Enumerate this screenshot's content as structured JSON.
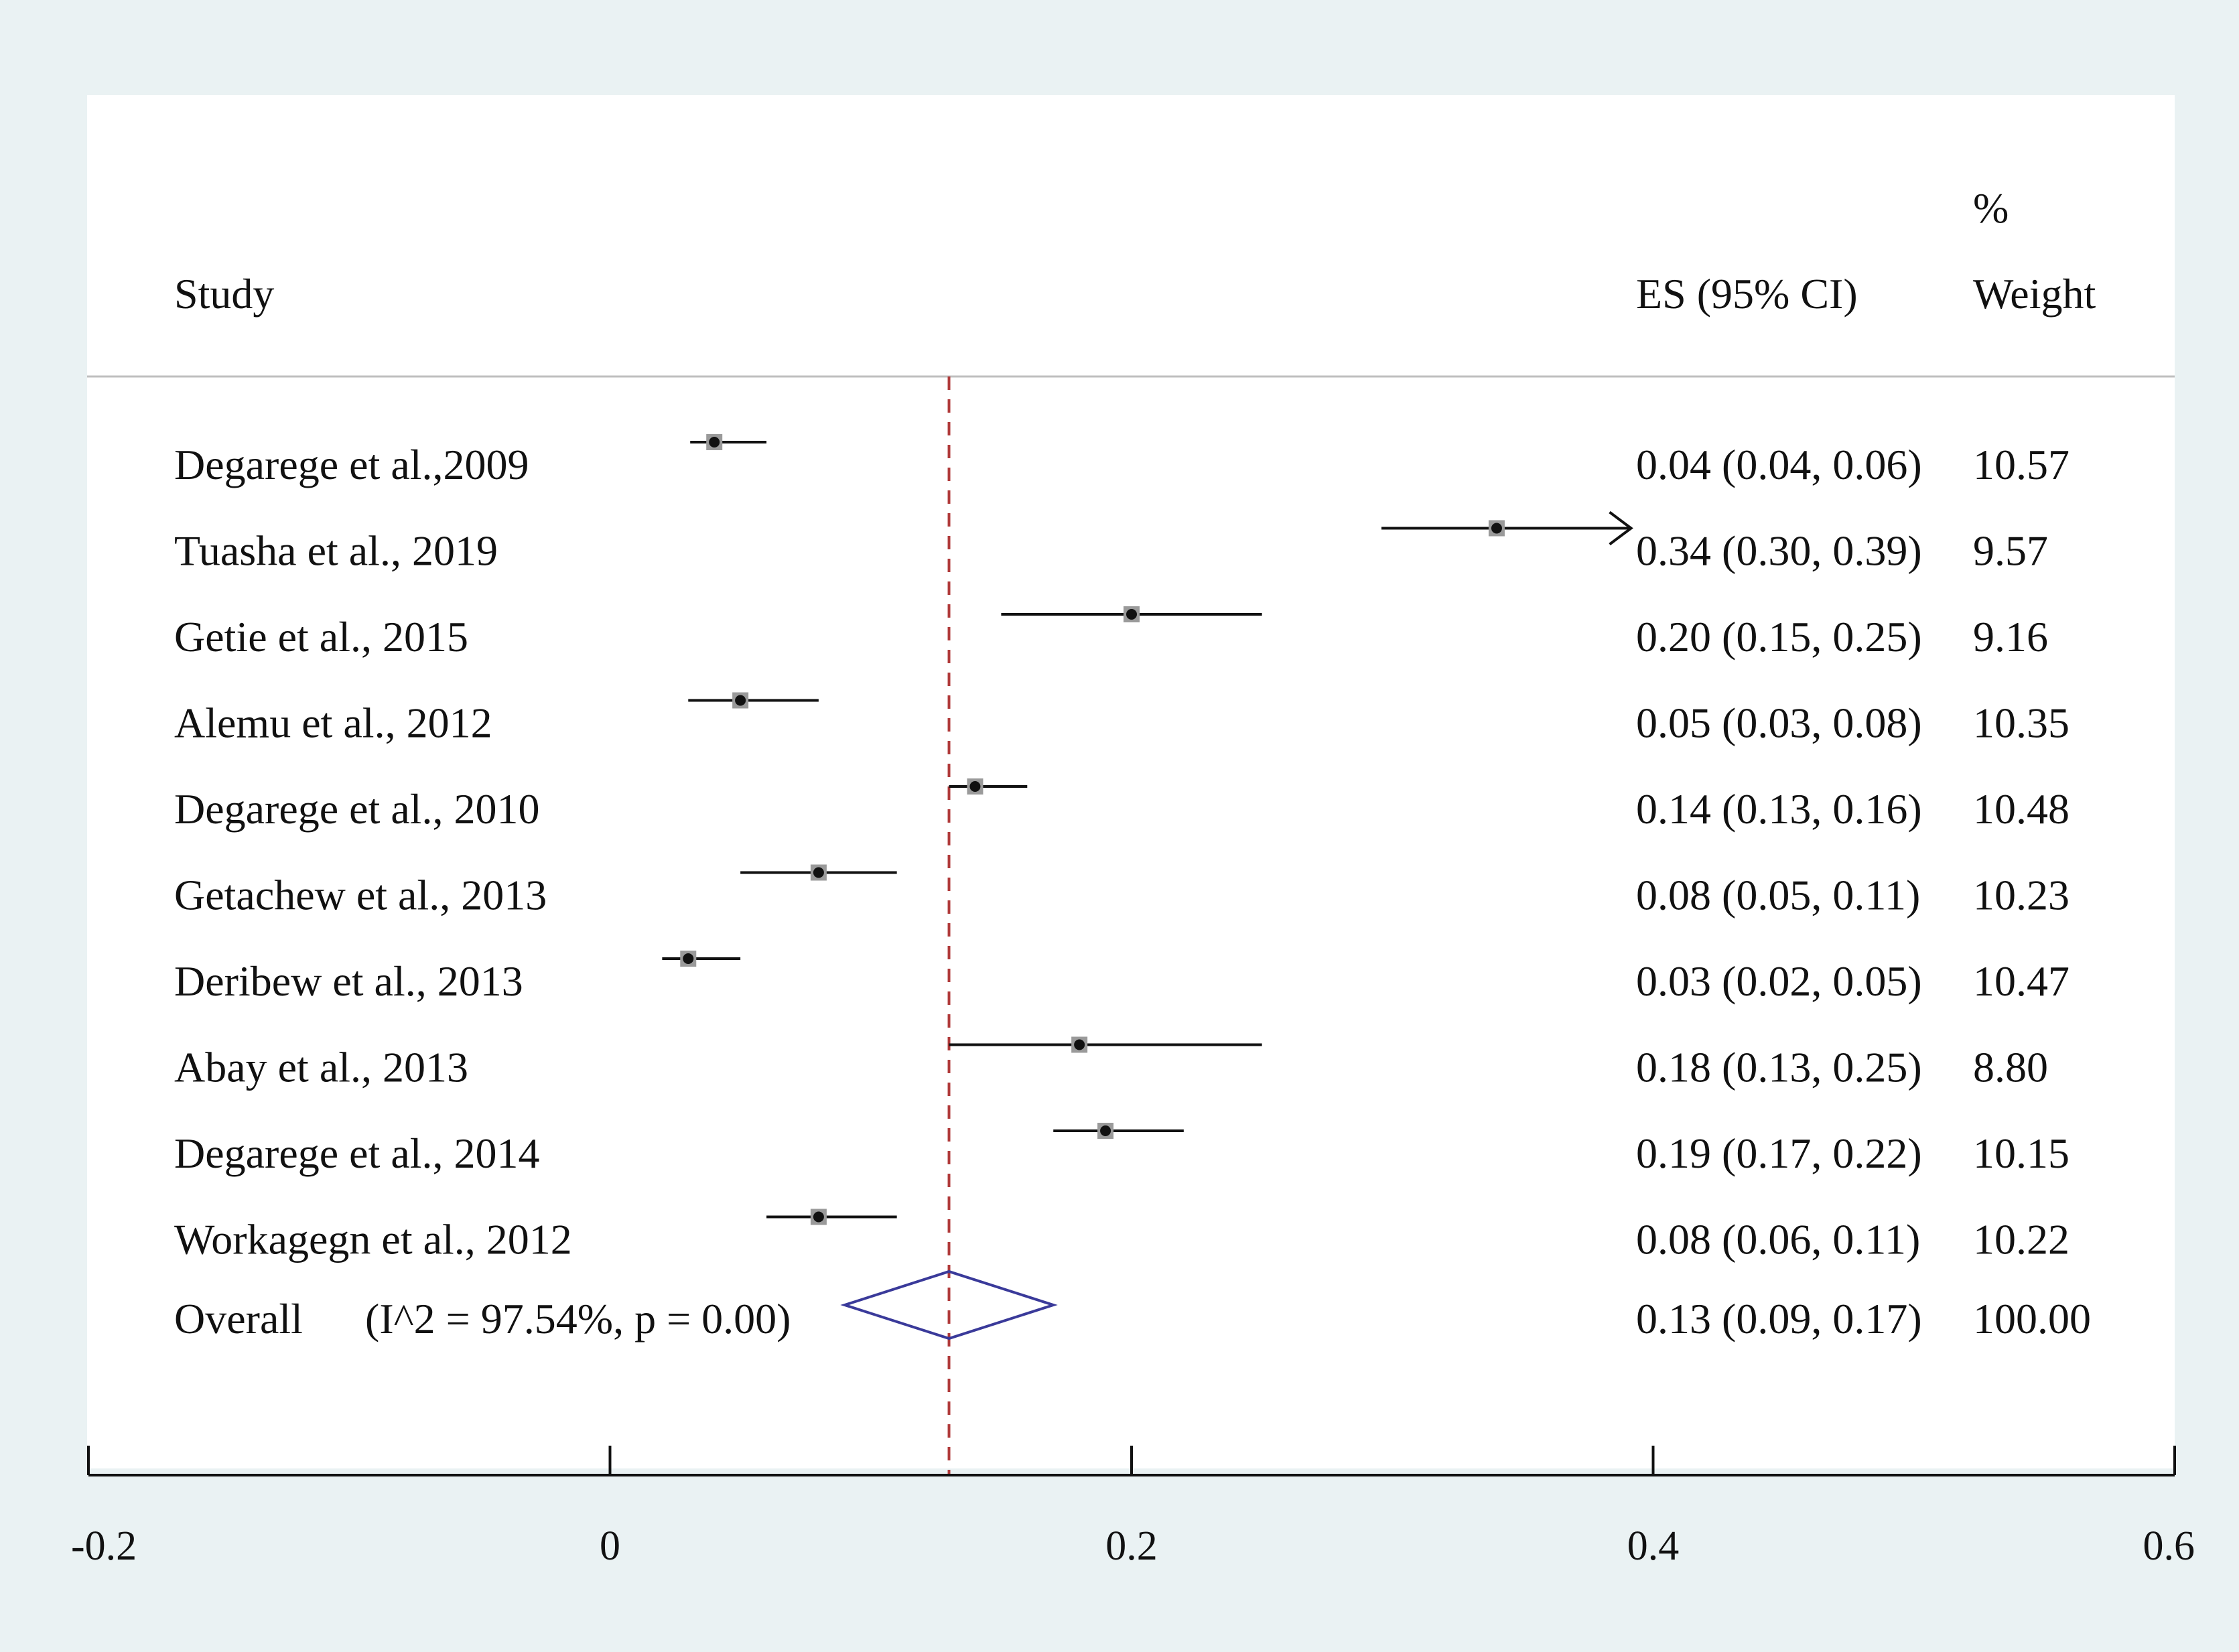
{
  "chart_data": {
    "type": "forest",
    "headers": {
      "study": "Study",
      "es_ci": "ES (95% CI)",
      "weight_top": "%",
      "weight": "Weight"
    },
    "xlim": [
      -0.2,
      0.6
    ],
    "xticks": [
      -0.2,
      0,
      0.2,
      0.4,
      0.6
    ],
    "xtick_labels": [
      "-0.2",
      "0",
      "0.2",
      "0.4",
      "0.6"
    ],
    "reference_line": 0.13,
    "studies": [
      {
        "label": "Degarege et al.,2009",
        "es": 0.04,
        "lo": 0.04,
        "hi": 0.06,
        "ci_text": "0.04 (0.04, 0.06)",
        "weight": "10.57"
      },
      {
        "label": "Tuasha et al., 2019",
        "es": 0.34,
        "lo": 0.3,
        "hi": 0.39,
        "ci_text": "0.34 (0.30, 0.39)",
        "weight": "9.57"
      },
      {
        "label": "Getie et al., 2015",
        "es": 0.2,
        "lo": 0.15,
        "hi": 0.25,
        "ci_text": "0.20 (0.15, 0.25)",
        "weight": "9.16"
      },
      {
        "label": "Alemu et al., 2012",
        "es": 0.05,
        "lo": 0.03,
        "hi": 0.08,
        "ci_text": "0.05 (0.03, 0.08)",
        "weight": "10.35"
      },
      {
        "label": "Degarege et al., 2010",
        "es": 0.14,
        "lo": 0.13,
        "hi": 0.16,
        "ci_text": "0.14 (0.13, 0.16)",
        "weight": "10.48"
      },
      {
        "label": "Getachew et al., 2013",
        "es": 0.08,
        "lo": 0.05,
        "hi": 0.11,
        "ci_text": "0.08 (0.05, 0.11)",
        "weight": "10.23"
      },
      {
        "label": "Deribew et al., 2013",
        "es": 0.03,
        "lo": 0.02,
        "hi": 0.05,
        "ci_text": "0.03 (0.02, 0.05)",
        "weight": "10.47"
      },
      {
        "label": "Abay et al., 2013",
        "es": 0.18,
        "lo": 0.13,
        "hi": 0.25,
        "ci_text": "0.18 (0.13, 0.25)",
        "weight": "8.80"
      },
      {
        "label": "Degarege et al., 2014",
        "es": 0.19,
        "lo": 0.17,
        "hi": 0.22,
        "ci_text": "0.19 (0.17, 0.22)",
        "weight": "10.15"
      },
      {
        "label": "Workagegn et al., 2012",
        "es": 0.08,
        "lo": 0.06,
        "hi": 0.11,
        "ci_text": "0.08 (0.06, 0.11)",
        "weight": "10.22"
      }
    ],
    "overall": {
      "label": "Overall",
      "heterogeneity": "(I^2 = 97.54%, p = 0.00)",
      "es": 0.13,
      "lo": 0.09,
      "hi": 0.17,
      "ci_text": "0.13 (0.09, 0.17)",
      "weight": "100.00"
    },
    "colors": {
      "background": "#eaf2f3",
      "panel": "#ffffff",
      "reference_line": "#b03a3a",
      "diamond": "#3a3a9a",
      "marker": "#111111",
      "marker_box": "#9a9a9a"
    }
  }
}
